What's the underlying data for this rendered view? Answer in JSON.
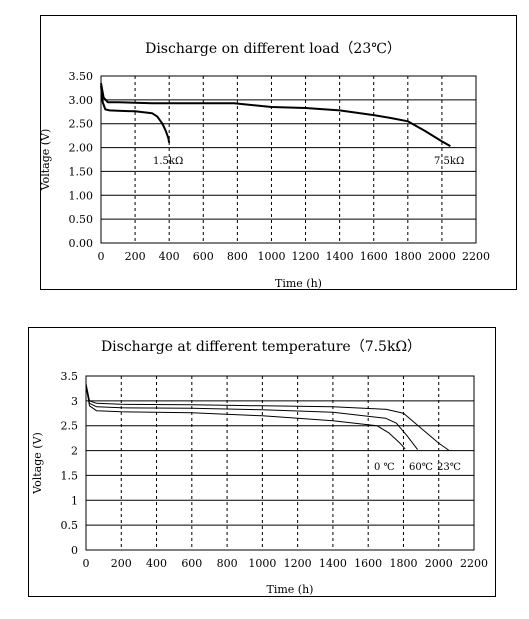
{
  "chart_data": [
    {
      "type": "line",
      "title": "Discharge on different load（23℃）",
      "xlabel": "Time (h)",
      "ylabel": "Voltage (V)",
      "xlim": [
        0,
        2200
      ],
      "ylim": [
        0,
        3.5
      ],
      "x_ticks": [
        0,
        200,
        400,
        600,
        800,
        1000,
        1200,
        1400,
        1600,
        1800,
        2000,
        2200
      ],
      "y_ticks": [
        0,
        0.5,
        1.0,
        1.5,
        2.0,
        2.5,
        3.0,
        3.5
      ],
      "x_tick_labels": [
        "0",
        "200",
        "400",
        "600",
        "800",
        "1000",
        "1200",
        "1400",
        "1600",
        "1800",
        "2000",
        "2200"
      ],
      "y_tick_labels": [
        "0.00",
        "0.50",
        "1.00",
        "1.50",
        "2.00",
        "2.50",
        "3.00",
        "3.50"
      ],
      "grid": true,
      "series": [
        {
          "name": "1.5kΩ",
          "x": [
            0,
            10,
            25,
            50,
            100,
            200,
            300,
            330,
            360,
            380,
            395,
            400
          ],
          "y": [
            3.3,
            2.95,
            2.8,
            2.78,
            2.77,
            2.76,
            2.72,
            2.65,
            2.5,
            2.35,
            2.2,
            2.1
          ]
        },
        {
          "name": "7.5kΩ",
          "x": [
            0,
            15,
            40,
            100,
            300,
            500,
            780,
            1000,
            1200,
            1400,
            1600,
            1700,
            1800,
            1900,
            2000,
            2050
          ],
          "y": [
            3.35,
            3.05,
            2.95,
            2.95,
            2.93,
            2.93,
            2.93,
            2.85,
            2.83,
            2.78,
            2.68,
            2.62,
            2.55,
            2.35,
            2.13,
            2.03
          ]
        }
      ]
    },
    {
      "type": "line",
      "title": "Discharge at different temperature（7.5kΩ）",
      "xlabel": "Time (h)",
      "ylabel": "Voltage (V)",
      "xlim": [
        0,
        2200
      ],
      "ylim": [
        0,
        3.5
      ],
      "x_ticks": [
        0,
        200,
        400,
        600,
        800,
        1000,
        1200,
        1400,
        1600,
        1800,
        2000,
        2200
      ],
      "y_ticks": [
        0,
        0.5,
        1.0,
        1.5,
        2.0,
        2.5,
        3.0,
        3.5
      ],
      "x_tick_labels": [
        "0",
        "200",
        "400",
        "600",
        "800",
        "1000",
        "1200",
        "1400",
        "1600",
        "1800",
        "2000",
        "2200"
      ],
      "y_tick_labels": [
        "0",
        "0.5",
        "1",
        "1.5",
        "2",
        "2.5",
        "3",
        "3.5"
      ],
      "grid": true,
      "series": [
        {
          "name": "0 ℃",
          "x": [
            0,
            20,
            60,
            200,
            600,
            1000,
            1400,
            1650,
            1720,
            1780,
            1810
          ],
          "y": [
            3.3,
            2.9,
            2.8,
            2.78,
            2.76,
            2.7,
            2.6,
            2.5,
            2.35,
            2.15,
            2.03
          ]
        },
        {
          "name": "60℃",
          "x": [
            0,
            20,
            60,
            200,
            600,
            1000,
            1400,
            1700,
            1760,
            1820,
            1880
          ],
          "y": [
            3.3,
            2.95,
            2.88,
            2.86,
            2.85,
            2.82,
            2.77,
            2.65,
            2.55,
            2.3,
            2.02
          ]
        },
        {
          "name": "23℃",
          "x": [
            0,
            20,
            60,
            200,
            600,
            1000,
            1400,
            1700,
            1800,
            1900,
            2000,
            2060
          ],
          "y": [
            3.35,
            3.0,
            2.95,
            2.93,
            2.92,
            2.9,
            2.88,
            2.83,
            2.75,
            2.45,
            2.15,
            2.0
          ]
        }
      ]
    }
  ]
}
